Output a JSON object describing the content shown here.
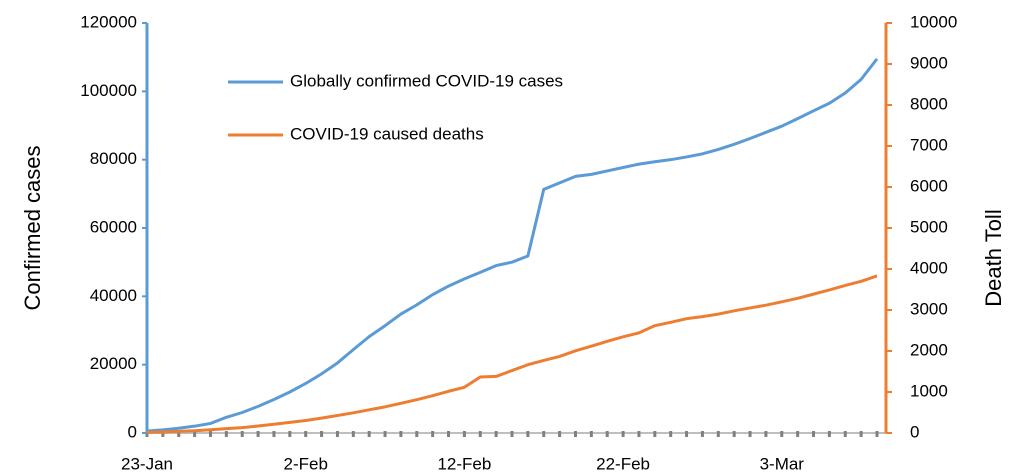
{
  "chart_data": {
    "type": "line",
    "categories": [
      "23-Jan",
      null,
      null,
      null,
      null,
      null,
      null,
      null,
      null,
      null,
      "2-Feb",
      null,
      null,
      null,
      null,
      null,
      null,
      null,
      null,
      null,
      "12-Feb",
      null,
      null,
      null,
      null,
      null,
      null,
      null,
      null,
      null,
      "22-Feb",
      null,
      null,
      null,
      null,
      null,
      null,
      null,
      null,
      null,
      "3-Mar",
      null,
      null,
      null,
      null,
      null,
      null
    ],
    "ylabel": "Confirmed cases",
    "y2label": "Death Toll",
    "ylim": [
      0,
      120000
    ],
    "yticks": [
      0,
      20000,
      40000,
      60000,
      80000,
      100000,
      120000
    ],
    "y2lim": [
      0,
      10000
    ],
    "y2ticks": [
      0,
      1000,
      2000,
      3000,
      4000,
      5000,
      6000,
      7000,
      8000,
      9000,
      10000
    ],
    "legend": "upper left",
    "grid": false,
    "series": [
      {
        "name": "Globally confirmed COVID-19 cases",
        "color": "#5b9bd5",
        "axis": "y",
        "values": [
          580,
          900,
          1400,
          2000,
          2800,
          4600,
          6000,
          7800,
          9800,
          12000,
          14500,
          17300,
          20500,
          24400,
          28200,
          31400,
          34800,
          37500,
          40500,
          43000,
          45100,
          47000,
          49000,
          50000,
          51800,
          71300,
          73200,
          75100,
          75700,
          76700,
          77700,
          78700,
          79400,
          80000,
          80800,
          81700,
          83000,
          84500,
          86200,
          88000,
          89800,
          92000,
          94300,
          96500,
          99500,
          103500,
          109500
        ]
      },
      {
        "name": "COVID-19 caused deaths",
        "color": "#ed7d31",
        "axis": "y2",
        "values": [
          17,
          25,
          41,
          56,
          80,
          106,
          132,
          170,
          213,
          259,
          304,
          362,
          426,
          492,
          565,
          638,
          724,
          813,
          910,
          1018,
          1115,
          1367,
          1380,
          1523,
          1665,
          1770,
          1868,
          2004,
          2118,
          2236,
          2345,
          2442,
          2618,
          2699,
          2788,
          2838,
          2900,
          2980,
          3050,
          3117,
          3200,
          3285,
          3387,
          3490,
          3600,
          3700,
          3830
        ]
      }
    ]
  }
}
